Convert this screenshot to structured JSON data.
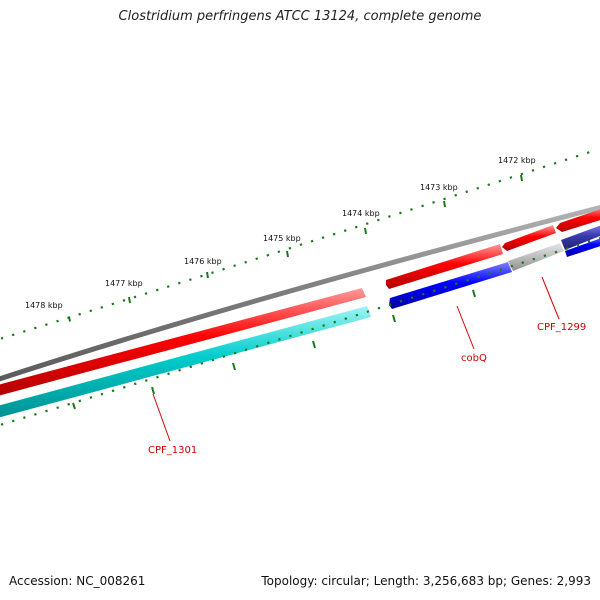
{
  "title": "Clostridium perfringens ATCC 13124, complete genome",
  "accession": "Accession: NC_008261",
  "summary": "Topology: circular; Length: 3,256,683 bp; Genes: 2,993",
  "colors": {
    "backbone": "#808080",
    "forward_gene": "#ff0000",
    "reverse_gene": "#0000ff",
    "rna": "#00c8c8",
    "pseudo": "#bbbbbb",
    "ticks": "#1a7a1a",
    "label_line": "#dd0000"
  },
  "ruler_labels": [
    {
      "text": "1478 kbp"
    },
    {
      "text": "1477 kbp"
    },
    {
      "text": "1476 kbp"
    },
    {
      "text": "1475 kbp"
    },
    {
      "text": "1474 kbp"
    },
    {
      "text": "1473 kbp"
    },
    {
      "text": "1472 kbp"
    }
  ],
  "gene_labels": [
    {
      "text": "CPF_1301"
    },
    {
      "text": "cobQ"
    },
    {
      "text": "CPF_1299"
    }
  ]
}
